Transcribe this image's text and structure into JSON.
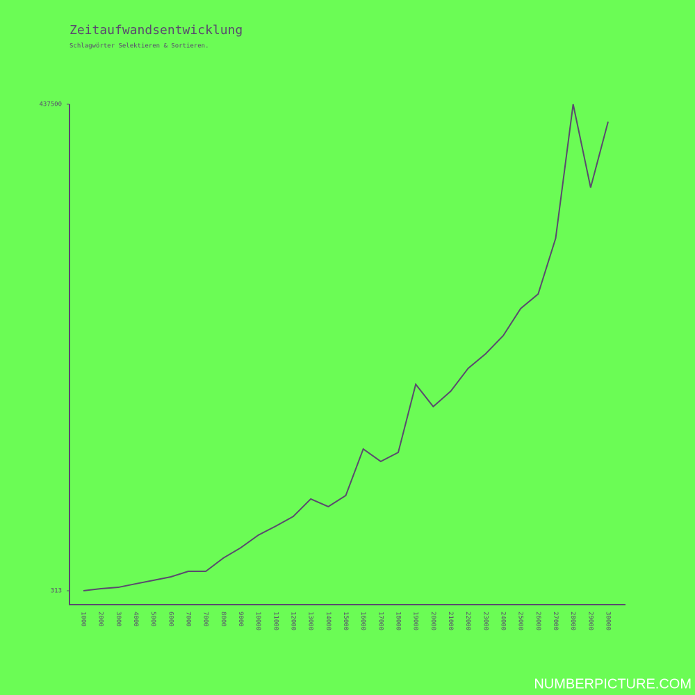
{
  "chart_data": {
    "type": "line",
    "title": "Zeitaufwandsentwicklung",
    "subtitle": "Schlagwörter Selektieren & Sortieren.",
    "categories": [
      "1000",
      "2000",
      "3000",
      "4000",
      "5000",
      "6000",
      "7000",
      "7000",
      "8000",
      "9000",
      "10000",
      "11000",
      "12000",
      "13000",
      "14000",
      "15000",
      "16000",
      "17000",
      "18000",
      "19000",
      "20000",
      "21000",
      "22000",
      "23000",
      "24000",
      "25000",
      "26000",
      "27000",
      "28000",
      "29000",
      "30000"
    ],
    "series": [
      {
        "color": "#5a4a6e",
        "values": [
          313,
          2200,
          3400,
          6600,
          9700,
          12800,
          17800,
          17800,
          29700,
          39000,
          50300,
          58400,
          67100,
          82800,
          75900,
          85900,
          127700,
          116500,
          124600,
          185800,
          165800,
          179600,
          200200,
          213300,
          229500,
          253900,
          267000,
          317000,
          437500,
          362600,
          421900
        ]
      }
    ],
    "ylim": [
      -12178,
      437500
    ],
    "yticks": [
      313,
      437500
    ],
    "footer": "NUMBERPICTURE.COM"
  }
}
